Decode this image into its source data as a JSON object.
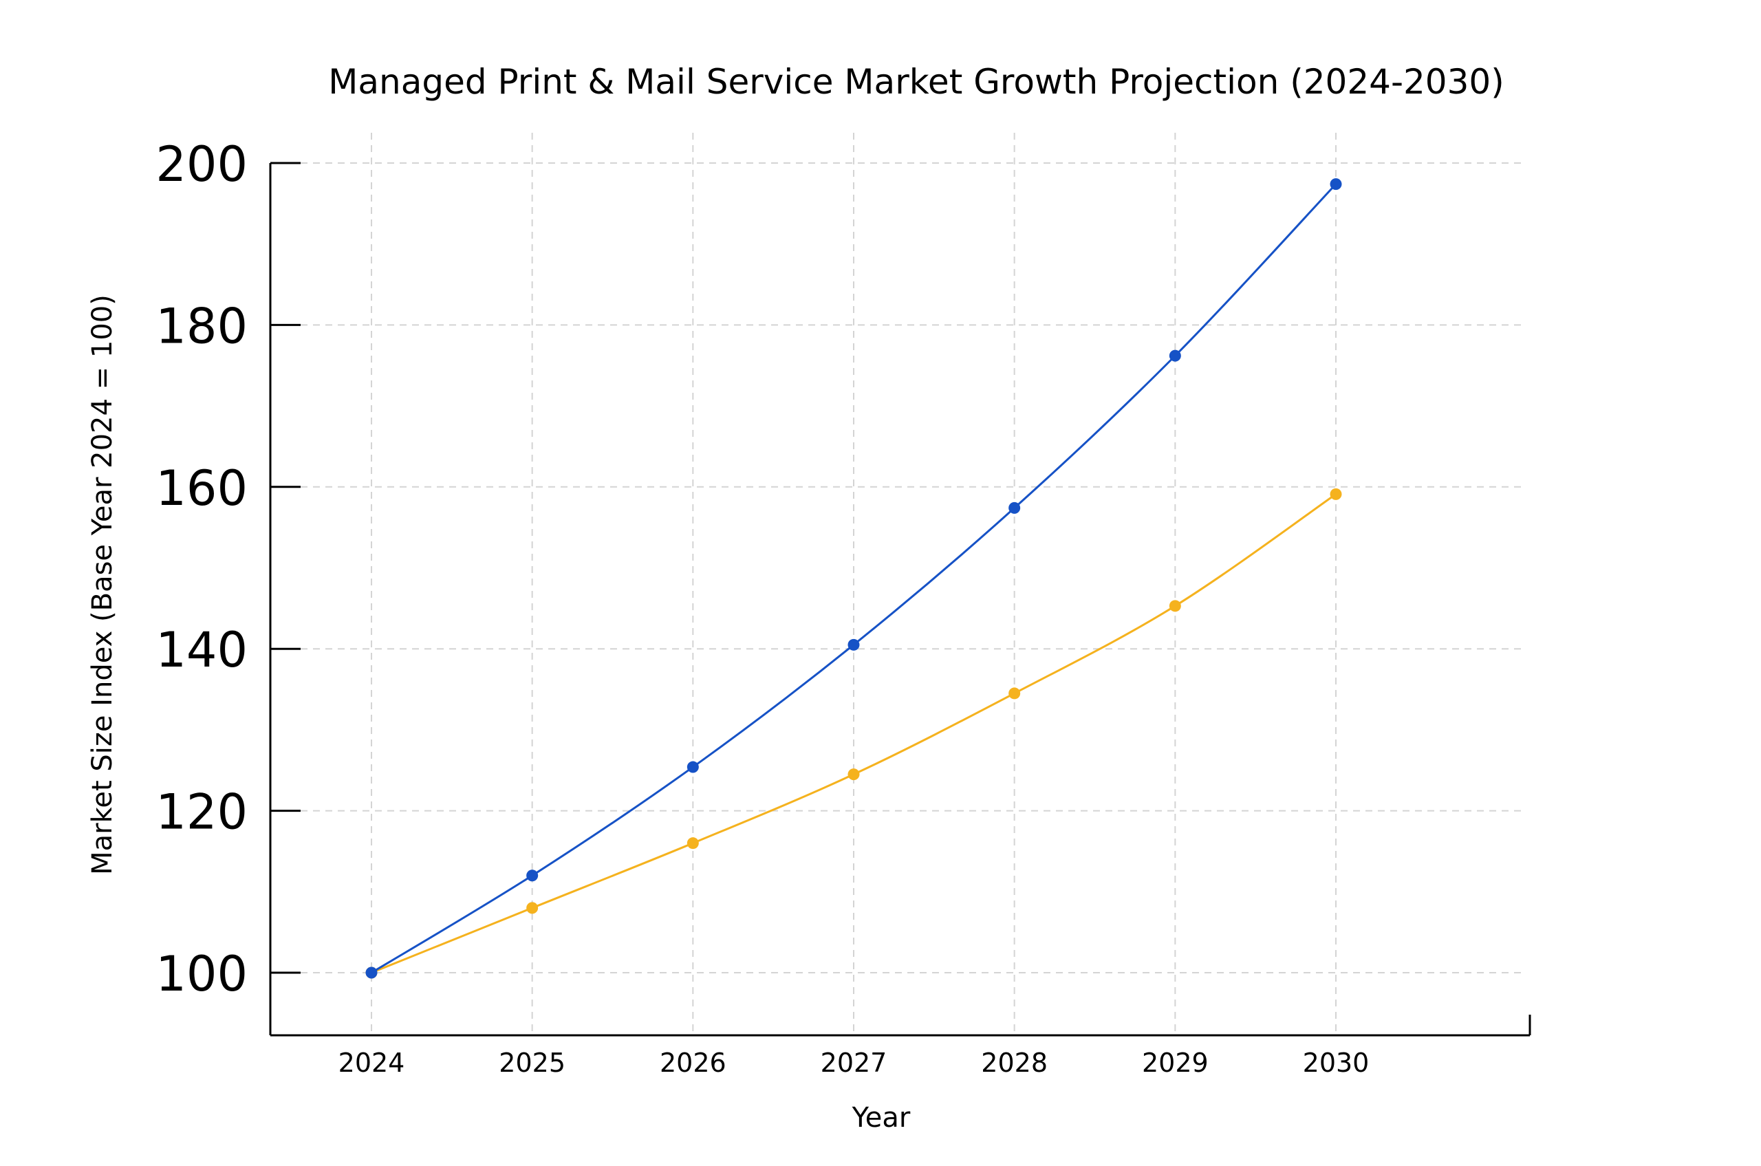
{
  "chart_data": {
    "type": "line",
    "title": "Managed Print & Mail Service Market Growth Projection (2024-2030)",
    "xlabel": "Year",
    "ylabel": "Market Size Index (Base Year 2024 = 100)",
    "x": [
      2024,
      2025,
      2026,
      2027,
      2028,
      2029,
      2030
    ],
    "x_tick_labels": [
      "2024",
      "2025",
      "2026",
      "2027",
      "2028",
      "2029",
      "2030"
    ],
    "y_ticks": [
      100,
      120,
      140,
      160,
      180,
      200
    ],
    "y_tick_labels": [
      "100",
      "120",
      "140",
      "160",
      "180",
      "200"
    ],
    "ylim": [
      92.5,
      200
    ],
    "xlim": [
      2023.35,
      2031.2
    ],
    "grid": true,
    "legend": "none",
    "series": [
      {
        "name": "Series 1 (blue)",
        "color": "#1652C6",
        "values": [
          100.0,
          112.0,
          125.4,
          140.5,
          157.4,
          176.2,
          197.4
        ]
      },
      {
        "name": "Series 2 (yellow)",
        "color": "#F5B21E",
        "values": [
          100.0,
          108.0,
          116.0,
          124.5,
          134.5,
          145.3,
          159.1
        ]
      }
    ]
  }
}
